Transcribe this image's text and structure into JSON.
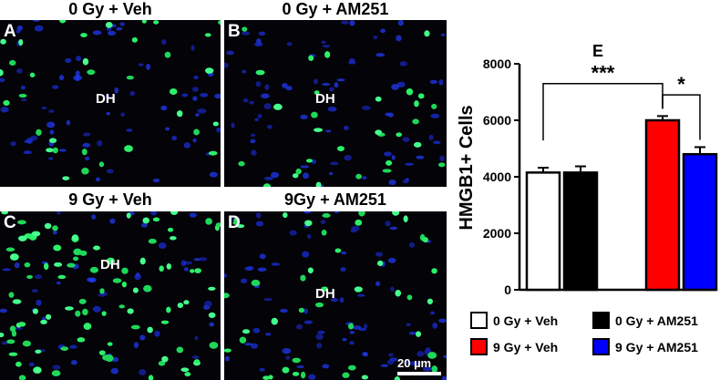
{
  "panels": [
    {
      "letter": "A",
      "title": "0 Gy + Veh",
      "dh": "DH"
    },
    {
      "letter": "B",
      "title": "0 Gy + AM251",
      "dh": "DH"
    },
    {
      "letter": "C",
      "title": "9 Gy + Veh",
      "dh": "DH"
    },
    {
      "letter": "D",
      "title": "9Gy + AM251",
      "dh": "DH"
    }
  ],
  "scale_bar": {
    "label": "20 µm"
  },
  "chart_data": {
    "type": "bar",
    "title": "E",
    "ylabel": "HMGB1+ Cells",
    "ylim": [
      0,
      8000
    ],
    "yticks": [
      0,
      2000,
      4000,
      6000,
      8000
    ],
    "grid": false,
    "legend_placement": "bottom",
    "categories": [
      "0 Gy + Veh",
      "0 Gy + AM251",
      "9 Gy + Veh",
      "9 Gy + AM251"
    ],
    "values": [
      4150,
      4150,
      6000,
      4800
    ],
    "errors": [
      170,
      220,
      150,
      250
    ],
    "colors": [
      "#ffffff",
      "#000000",
      "#ff0000",
      "#0000ff"
    ],
    "significance": [
      {
        "from": 0,
        "to": 2,
        "label": "***"
      },
      {
        "from": 2,
        "to": 3,
        "label": "*"
      }
    ]
  }
}
